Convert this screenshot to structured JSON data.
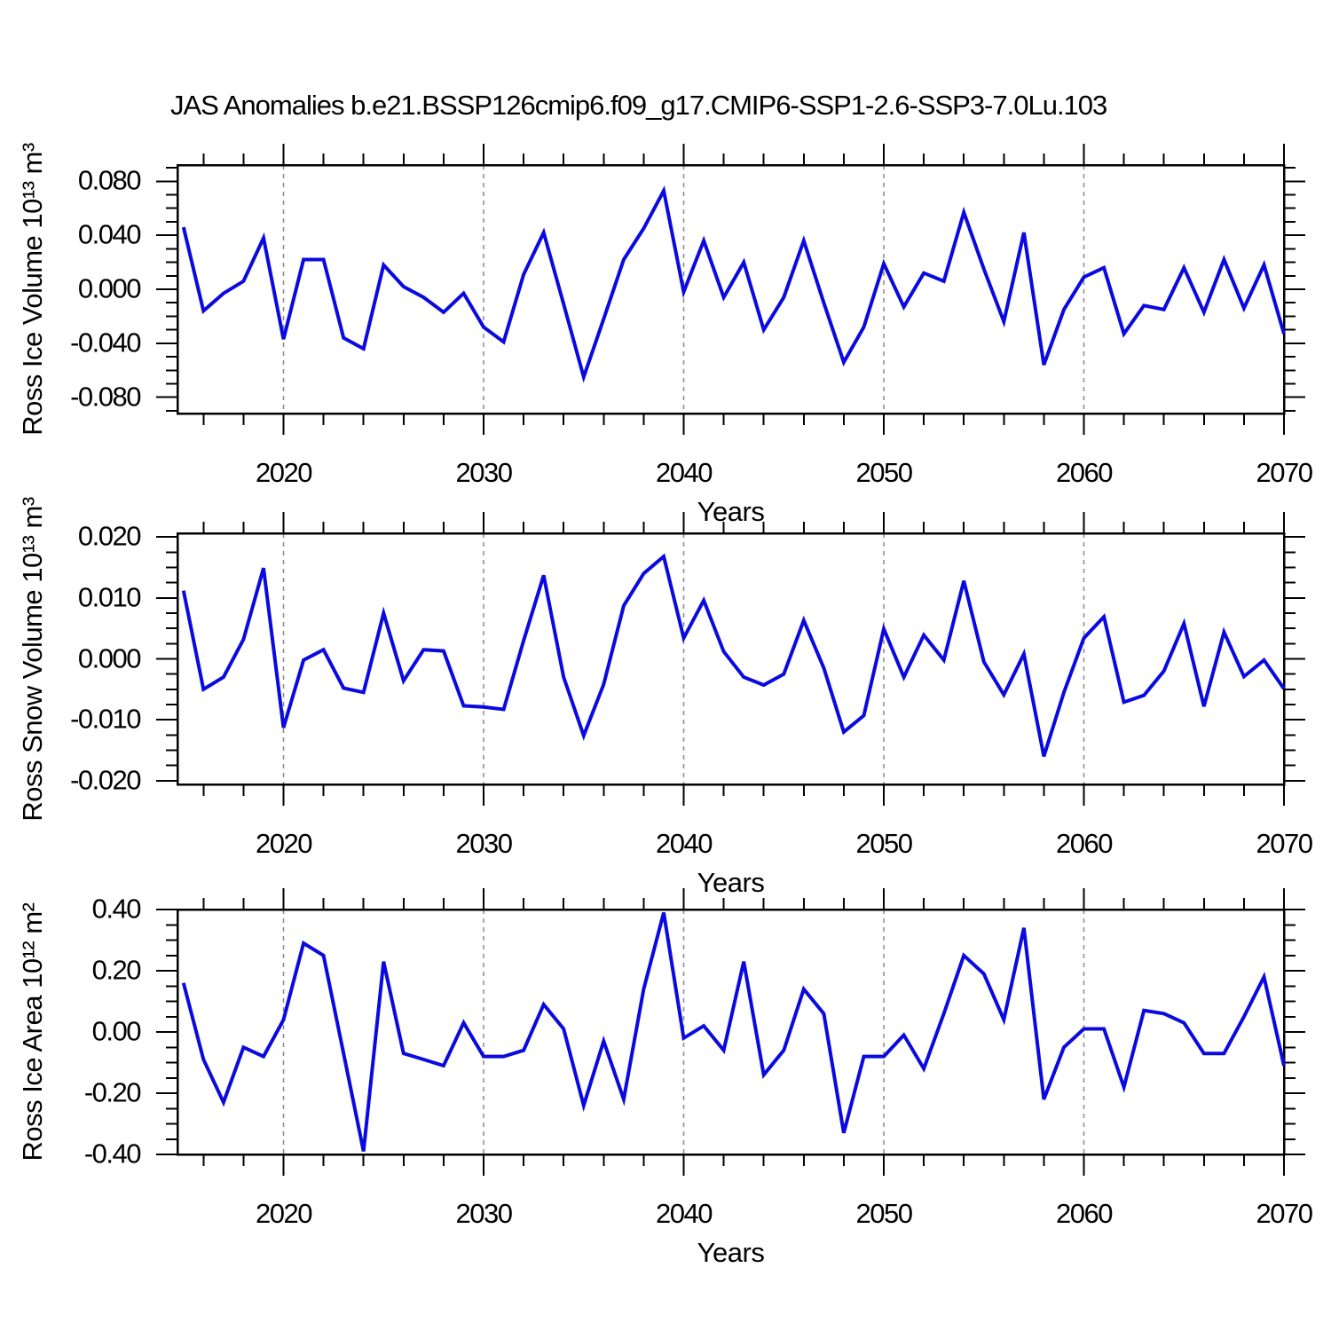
{
  "figure": {
    "title": "JAS Anomalies b.e21.BSSP126cmip6.f09_g17.CMIP6-SSP1-2.6-SSP3-7.0Lu.103",
    "line_color": "#0a0ae0",
    "grid_color": "#8a8a8a",
    "frame_color": "#000000",
    "background": "#ffffff"
  },
  "chart_data": [
    {
      "type": "line",
      "title": "",
      "ylabel": "Ross Ice Volume 10¹³ m³",
      "xlabel": "Years",
      "legend": "none",
      "grid": "vertical-dashed",
      "x_years": {
        "start": 2015,
        "end": 2070,
        "step": 1
      },
      "xlim": [
        2014.7,
        2070
      ],
      "ylim": [
        -0.092,
        0.092
      ],
      "xticks": [
        2020,
        2030,
        2040,
        2050,
        2060,
        2070
      ],
      "xtick_labels": [
        "2020",
        "2030",
        "2040",
        "2050",
        "2060",
        "2070"
      ],
      "x_minor_step": 2,
      "grid_years": [
        2020,
        2030,
        2040,
        2050,
        2060
      ],
      "yticks": [
        0.08,
        0.04,
        0.0,
        -0.04,
        -0.08
      ],
      "ytick_labels": [
        "0.080",
        "0.040",
        "0.000",
        "-0.040",
        "-0.080"
      ],
      "y_minor_step": 0.01,
      "values": [
        0.046,
        -0.016,
        -0.003,
        0.006,
        0.038,
        -0.037,
        0.022,
        0.022,
        -0.036,
        -0.044,
        0.018,
        0.002,
        -0.006,
        -0.017,
        -0.003,
        -0.028,
        -0.039,
        0.011,
        0.042,
        -0.011,
        -0.065,
        -0.022,
        0.022,
        0.045,
        0.073,
        -0.002,
        0.036,
        -0.006,
        0.02,
        -0.03,
        -0.006,
        0.036,
        -0.01,
        -0.054,
        -0.028,
        0.019,
        -0.013,
        0.012,
        0.006,
        0.057,
        0.015,
        -0.024,
        0.042,
        -0.056,
        -0.015,
        0.009,
        0.016,
        -0.033,
        -0.012,
        -0.015,
        0.016,
        -0.017,
        0.022,
        -0.014,
        0.018,
        -0.033
      ]
    },
    {
      "type": "line",
      "title": "",
      "ylabel": "Ross Snow Volume 10¹³ m³",
      "xlabel": "Years",
      "legend": "none",
      "grid": "vertical-dashed",
      "x_years": {
        "start": 2015,
        "end": 2070,
        "step": 1
      },
      "xlim": [
        2014.7,
        2070
      ],
      "ylim": [
        -0.0206,
        0.0206
      ],
      "xticks": [
        2020,
        2030,
        2040,
        2050,
        2060,
        2070
      ],
      "xtick_labels": [
        "2020",
        "2030",
        "2040",
        "2050",
        "2060",
        "2070"
      ],
      "x_minor_step": 2,
      "grid_years": [
        2020,
        2030,
        2040,
        2050,
        2060
      ],
      "yticks": [
        0.02,
        0.01,
        0.0,
        -0.01,
        -0.02
      ],
      "ytick_labels": [
        "0.020",
        "0.010",
        "0.000",
        "-0.010",
        "-0.020"
      ],
      "y_minor_step": 0.0025,
      "values": [
        0.0112,
        -0.005,
        -0.003,
        0.0032,
        0.0149,
        -0.0113,
        -0.0002,
        0.0015,
        -0.0048,
        -0.0055,
        0.0075,
        -0.0036,
        0.0015,
        0.0013,
        -0.0077,
        -0.0079,
        -0.0083,
        0.003,
        0.0137,
        -0.003,
        -0.0126,
        -0.0042,
        0.0087,
        0.014,
        0.0168,
        0.0034,
        0.0096,
        0.0012,
        -0.003,
        -0.0043,
        -0.0025,
        0.0063,
        -0.0015,
        -0.012,
        -0.0093,
        0.0049,
        -0.003,
        0.0039,
        -0.0002,
        0.0128,
        -0.0005,
        -0.0059,
        0.0008,
        -0.016,
        -0.0055,
        0.0034,
        0.0069,
        -0.0071,
        -0.006,
        -0.002,
        0.0058,
        -0.0078,
        0.0044,
        -0.0029,
        -0.0002,
        -0.0049
      ]
    },
    {
      "type": "line",
      "title": "",
      "ylabel": "Ross Ice Area 10¹² m²",
      "xlabel": "Years",
      "legend": "none",
      "grid": "vertical-dashed",
      "x_years": {
        "start": 2015,
        "end": 2070,
        "step": 1
      },
      "xlim": [
        2014.7,
        2070
      ],
      "ylim": [
        -0.4,
        0.4
      ],
      "xticks": [
        2020,
        2030,
        2040,
        2050,
        2060,
        2070
      ],
      "xtick_labels": [
        "2020",
        "2030",
        "2040",
        "2050",
        "2060",
        "2070"
      ],
      "x_minor_step": 2,
      "grid_years": [
        2020,
        2030,
        2040,
        2050,
        2060
      ],
      "yticks": [
        0.4,
        0.2,
        0.0,
        -0.2,
        -0.4
      ],
      "ytick_labels": [
        "0.40",
        "0.20",
        "0.00",
        "-0.20",
        "-0.40"
      ],
      "y_minor_step": 0.05,
      "values": [
        0.16,
        -0.09,
        -0.23,
        -0.05,
        -0.08,
        0.04,
        0.29,
        0.25,
        -0.07,
        -0.39,
        0.23,
        -0.07,
        -0.09,
        -0.11,
        0.03,
        -0.08,
        -0.08,
        -0.06,
        0.09,
        0.01,
        -0.24,
        -0.03,
        -0.22,
        0.14,
        0.39,
        -0.02,
        0.02,
        -0.06,
        0.23,
        -0.14,
        -0.06,
        0.14,
        0.06,
        -0.33,
        -0.08,
        -0.08,
        -0.01,
        -0.12,
        0.06,
        0.25,
        0.19,
        0.04,
        0.34,
        -0.22,
        -0.05,
        0.01,
        0.01,
        -0.18,
        0.07,
        0.06,
        0.03,
        -0.07,
        -0.07,
        0.05,
        0.18,
        -0.11
      ]
    }
  ]
}
